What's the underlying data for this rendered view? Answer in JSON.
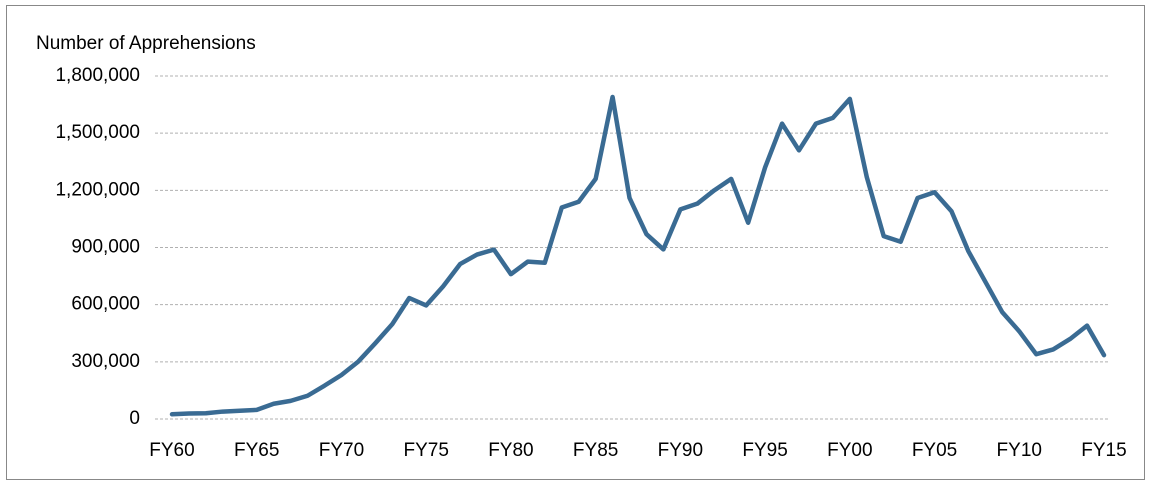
{
  "chart_data": {
    "type": "line",
    "y_axis_label": "Number of Apprehensions",
    "categories": [
      "FY60",
      null,
      null,
      null,
      null,
      "FY65",
      null,
      null,
      null,
      null,
      "FY70",
      null,
      null,
      null,
      null,
      "FY75",
      null,
      null,
      null,
      null,
      "FY80",
      null,
      null,
      null,
      null,
      "FY85",
      null,
      null,
      null,
      null,
      "FY90",
      null,
      null,
      null,
      null,
      "FY95",
      null,
      null,
      null,
      null,
      "FY00",
      null,
      null,
      null,
      null,
      "FY05",
      null,
      null,
      null,
      null,
      "FY10",
      null,
      null,
      null,
      null,
      "FY15"
    ],
    "values": [
      25000,
      29000,
      30000,
      39000,
      43000,
      48000,
      80000,
      95000,
      122000,
      175000,
      231000,
      302000,
      398000,
      498000,
      635000,
      596000,
      696000,
      813000,
      863000,
      889000,
      760000,
      826000,
      820000,
      1110000,
      1140000,
      1260000,
      1690000,
      1160000,
      970000,
      890000,
      1100000,
      1130000,
      1200000,
      1260000,
      1030000,
      1320000,
      1550000,
      1410000,
      1550000,
      1580000,
      1680000,
      1270000,
      960000,
      930000,
      1160000,
      1190000,
      1090000,
      880000,
      720000,
      560000,
      460000,
      340000,
      365000,
      420000,
      490000,
      335000
    ],
    "color": "#3a6b93",
    "ylim": [
      0,
      1800000
    ],
    "yticks": [
      0,
      {
        "value": 300000,
        "label": "300,000"
      },
      {
        "value": 600000,
        "label": "600,000"
      },
      {
        "value": 900000,
        "label": "900,000"
      },
      {
        "value": 1200000,
        "label": "1,200,000"
      },
      {
        "value": 1500000,
        "label": "1,500,000"
      },
      {
        "value": 1800000,
        "label": "1,800,000"
      }
    ],
    "grid": true
  }
}
